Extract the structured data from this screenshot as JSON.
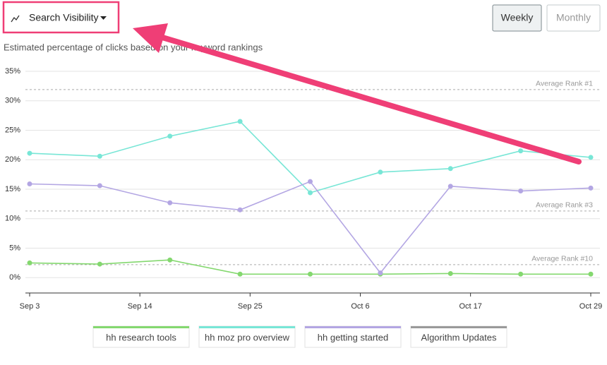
{
  "header": {
    "dropdown": "Search Visibility",
    "buttons": [
      "Weekly",
      "Monthly"
    ],
    "subtitle": "Estimated percentage of clicks based on your keyword rankings"
  },
  "chart_data": {
    "type": "line",
    "x": [
      "Sep 3",
      "Sep 10",
      "Sep 17",
      "Sep 24",
      "Oct 1",
      "Oct 8",
      "Oct 15",
      "Oct 22",
      "Oct 29"
    ],
    "xlim": [
      "Sep 3",
      "Oct 29"
    ],
    "xticks": [
      "Sep 3",
      "Sep 14",
      "Sep 25",
      "Oct 6",
      "Oct 17",
      "Oct 29"
    ],
    "ylim": [
      -2.6,
      35
    ],
    "yticks": [
      {
        "value": 0,
        "label": "0%"
      },
      {
        "value": 5,
        "label": "5%"
      },
      {
        "value": 10,
        "label": "10%"
      },
      {
        "value": 15,
        "label": "15%"
      },
      {
        "value": 20,
        "label": "20%"
      },
      {
        "value": 25,
        "label": "25%"
      },
      {
        "value": 30,
        "label": "30%"
      },
      {
        "value": 35,
        "label": "35%"
      }
    ],
    "grid": true,
    "series": [
      {
        "name": "hh research tools",
        "color": "#84d86f",
        "values": [
          2.5,
          2.3,
          3.0,
          0.6,
          0.6,
          0.6,
          0.7,
          0.6,
          0.6
        ]
      },
      {
        "name": "hh moz pro overview",
        "color": "#78e6d6",
        "values": [
          21.1,
          20.6,
          24.0,
          26.5,
          14.4,
          17.9,
          18.5,
          21.5,
          20.4
        ]
      },
      {
        "name": "hh getting started",
        "color": "#b3a6e3",
        "values": [
          15.9,
          15.6,
          12.7,
          11.5,
          16.3,
          0.8,
          15.5,
          14.7,
          15.2
        ]
      }
    ],
    "toggle": {
      "name": "Algorithm Updates",
      "color": "#9a9a9a"
    },
    "reference_lines": [
      {
        "label": "Average Rank #1",
        "value": 31.9
      },
      {
        "label": "Average Rank #3",
        "value": 11.3
      },
      {
        "label": "Average Rank #10",
        "value": 2.2
      }
    ]
  }
}
